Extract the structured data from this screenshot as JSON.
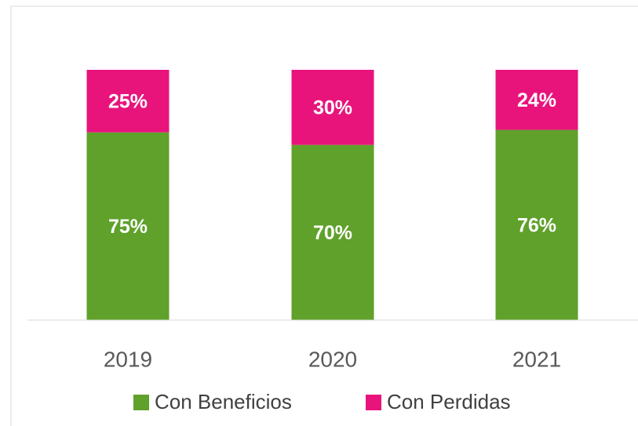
{
  "chart_data": {
    "type": "stacked_bar",
    "categories": [
      "2019",
      "2020",
      "2021"
    ],
    "series": [
      {
        "name": "Con Beneficios",
        "color": "#5fa12a",
        "values": [
          75,
          70,
          76
        ],
        "value_labels": [
          "75%",
          "70%",
          "76%"
        ]
      },
      {
        "name": "Con Perdidas",
        "color": "#e8147c",
        "values": [
          25,
          30,
          24
        ],
        "value_labels": [
          "25%",
          "30%",
          "24%"
        ]
      }
    ],
    "ylim": [
      0,
      100
    ],
    "legend": "bottom"
  }
}
